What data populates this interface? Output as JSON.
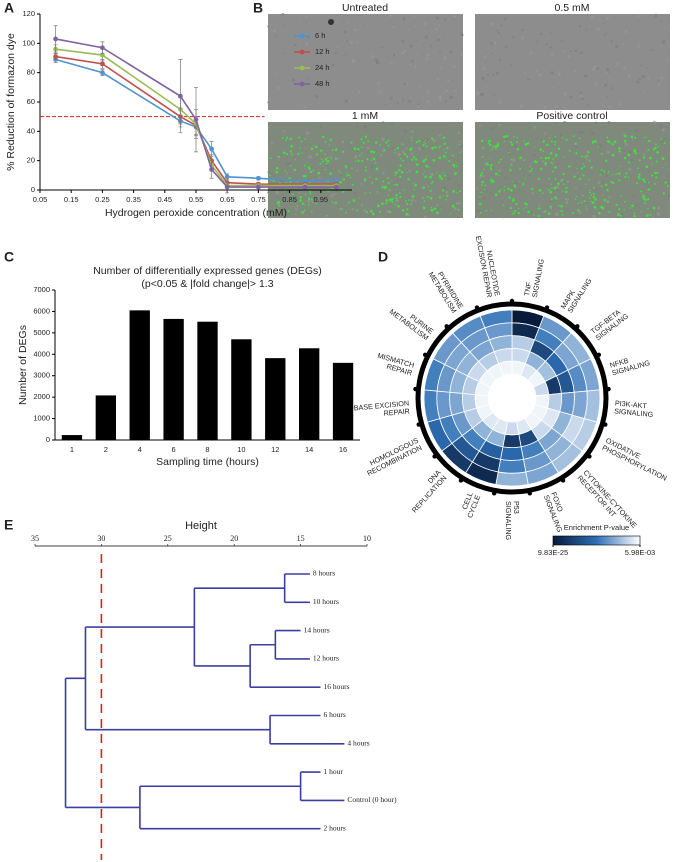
{
  "panel_labels": [
    "A",
    "B",
    "C",
    "D",
    "E"
  ],
  "images": {
    "labels": [
      "Untreated",
      "0.5 mM",
      "1 mM",
      "Positive control"
    ]
  },
  "chart_data": [
    {
      "type": "line",
      "ylabel": "% Reduction of formazon dye",
      "xlabel": "Hydrogen peroxide concentration (mM)",
      "x": [
        0.1,
        0.25,
        0.5,
        0.55,
        0.6,
        0.65,
        0.75,
        0.9,
        1.0
      ],
      "xlim": [
        0.05,
        1.05
      ],
      "xticks": [
        0.05,
        0.15,
        0.25,
        0.35,
        0.45,
        0.55,
        0.65,
        0.75,
        0.85,
        0.95
      ],
      "ylim": [
        0,
        120
      ],
      "yticks": [
        0,
        20,
        40,
        60,
        80,
        100,
        120
      ],
      "reference_line": {
        "value": 50,
        "color": "#e02020"
      },
      "legend": "upper right",
      "series": [
        {
          "name": "6 h",
          "color": "#4f94cd",
          "values": [
            89,
            80,
            47,
            43,
            28,
            9,
            8,
            6,
            7
          ],
          "errors": [
            2,
            2,
            4,
            6,
            5,
            2,
            1,
            1,
            1
          ]
        },
        {
          "name": "12 h",
          "color": "#c0504d",
          "values": [
            91,
            86,
            50,
            44,
            20,
            5,
            4,
            4,
            4
          ],
          "errors": [
            2,
            3,
            5,
            6,
            4,
            1,
            1,
            1,
            1
          ]
        },
        {
          "name": "24 h",
          "color": "#9bbb59",
          "values": [
            96,
            92,
            55,
            45,
            17,
            3,
            3,
            3,
            3
          ],
          "errors": [
            3,
            4,
            8,
            10,
            4,
            1,
            1,
            1,
            1
          ]
        },
        {
          "name": "48 h",
          "color": "#8064a2",
          "values": [
            103,
            97,
            64,
            48,
            14,
            2,
            2,
            2,
            2
          ],
          "errors": [
            9,
            4,
            25,
            22,
            6,
            4,
            1,
            1,
            1
          ]
        }
      ]
    },
    {
      "type": "bar",
      "title": "Number of differentially expressed genes (DEGs)",
      "subtitle": "(p<0.05 & |fold change|> 1.3",
      "ylabel": "Number of DEGs",
      "xlabel": "Sampling time (hours)",
      "categories": [
        "1",
        "2",
        "4",
        "6",
        "8",
        "10",
        "12",
        "14",
        "16"
      ],
      "values": [
        230,
        2080,
        6050,
        5650,
        5520,
        4700,
        3820,
        4280,
        3600
      ],
      "color": "#000000",
      "ylim": [
        0,
        7000
      ],
      "yticks": [
        0,
        1000,
        2000,
        3000,
        4000,
        5000,
        6000,
        7000
      ]
    },
    {
      "type": "radialheatmap",
      "colorbar_label": "Enrichment P-value",
      "colorbar_ticks": [
        {
          "value": 9.83e-25,
          "label": "9.83E-25"
        },
        {
          "value": 0.00598,
          "label": "5.98E-03"
        }
      ],
      "colors": [
        "#081a3a",
        "#2e6fb5",
        "#ffffff"
      ],
      "categories": [
        [
          "TNF",
          "SIGNALING"
        ],
        [
          "MAPK",
          "SIGNALING"
        ],
        [
          "TGF-BETA",
          "SIGNALING"
        ],
        [
          "NFKB",
          "SIGNALING"
        ],
        [
          "PI3K-AKT",
          "SIGNALING"
        ],
        [
          "OXIDATIVE",
          "PHOSPHORYLATION"
        ],
        [
          "CYTOKINE-CYTOKINE",
          "RECEPTOR INT"
        ],
        [
          "FOXO",
          "SIGNALING"
        ],
        [
          "P53",
          "SIGNALING"
        ],
        [
          "CELL",
          "CYCLE"
        ],
        [
          "DNA",
          "REPLICATION"
        ],
        [
          "HOMOLOGOUS",
          "RECOMBINATION"
        ],
        [
          "BASE EXCISION",
          "REPAIR"
        ],
        [
          "MISMATCH",
          "REPAIR"
        ],
        [
          "PURINE",
          "METABOLISM"
        ],
        [
          "PYRIMIDINE",
          "METABOLISM"
        ],
        [
          "NUCLEOTIDE",
          "EXCISION REPAIR"
        ]
      ],
      "values": [
        [
          1e-24,
          1e-22,
          1e-06,
          1e-05,
          0.001
        ],
        [
          1e-10,
          1e-12,
          1e-18,
          1e-08,
          0.0001
        ],
        [
          1e-08,
          1e-09,
          1e-14,
          1e-07,
          0.001
        ],
        [
          1e-09,
          1e-11,
          1e-16,
          1e-20,
          1e-05
        ],
        [
          1e-07,
          1e-09,
          1e-10,
          1e-06,
          0.001
        ],
        [
          1e-06,
          1e-05,
          1e-08,
          0.0001,
          0.001
        ],
        [
          1e-07,
          1e-08,
          1e-09,
          1e-05,
          0.001
        ],
        [
          1e-09,
          1e-10,
          1e-12,
          1e-18,
          0.0001
        ],
        [
          1e-08,
          1e-12,
          1e-14,
          1e-20,
          1e-05
        ],
        [
          1e-22,
          1e-20,
          1e-15,
          1e-08,
          0.0001
        ],
        [
          1e-20,
          1e-16,
          1e-12,
          1e-08,
          0.0001
        ],
        [
          1e-14,
          1e-12,
          1e-10,
          1e-06,
          0.001
        ],
        [
          1e-12,
          1e-10,
          1e-09,
          1e-06,
          0.001
        ],
        [
          1e-12,
          1e-10,
          1e-08,
          1e-06,
          0.001
        ],
        [
          1e-10,
          1e-09,
          1e-08,
          1e-05,
          0.001
        ],
        [
          1e-11,
          1e-10,
          1e-09,
          1e-06,
          0.001
        ],
        [
          1e-12,
          1e-10,
          1e-08,
          1e-05,
          0.001
        ]
      ]
    },
    {
      "type": "dendrogram",
      "xlabel": "Height",
      "xlim": [
        35,
        10
      ],
      "xticks": [
        35,
        30,
        25,
        20,
        15,
        10
      ],
      "color": "#3b3fa0",
      "cutoff": {
        "value": 30,
        "color": "#e02020"
      },
      "tree": {
        "height": 32.7,
        "children": [
          {
            "height": 31.2,
            "children": [
              {
                "height": 23.0,
                "children": [
                  {
                    "height": 16.2,
                    "children": [
                      {
                        "label": "8 hours",
                        "height": 14.3
                      },
                      {
                        "label": "10 hours",
                        "height": 14.3
                      }
                    ]
                  },
                  {
                    "height": 18.8,
                    "children": [
                      {
                        "height": 16.9,
                        "children": [
                          {
                            "label": "14 hours",
                            "height": 15.0
                          },
                          {
                            "label": "12 hours",
                            "height": 14.3
                          }
                        ]
                      },
                      {
                        "label": "16 hours",
                        "height": 13.5
                      }
                    ]
                  }
                ]
              },
              {
                "height": 17.3,
                "children": [
                  {
                    "label": "6 hours",
                    "height": 13.5
                  },
                  {
                    "label": "4 hours",
                    "height": 11.7
                  }
                ]
              }
            ]
          },
          {
            "height": 27.1,
            "children": [
              {
                "height": 15.0,
                "children": [
                  {
                    "label": "1 hour",
                    "height": 13.5
                  },
                  {
                    "label": "Control (0 hour)",
                    "height": 11.7
                  }
                ]
              },
              {
                "label": "2 hours",
                "height": 13.5
              }
            ]
          }
        ]
      }
    }
  ]
}
